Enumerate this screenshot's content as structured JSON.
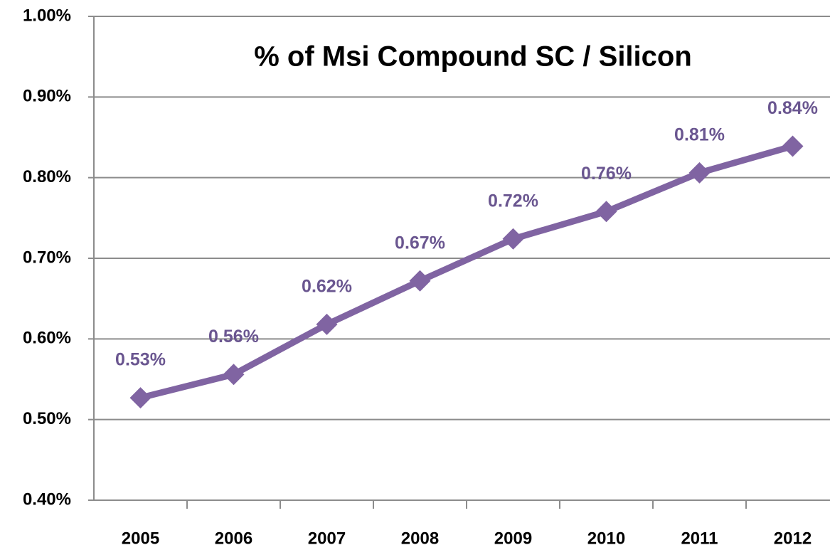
{
  "chart_data": {
    "type": "line",
    "title": "% of Msi Compound SC / Silicon",
    "categories": [
      "2005",
      "2006",
      "2007",
      "2008",
      "2009",
      "2010",
      "2011",
      "2012"
    ],
    "series": [
      {
        "name": "% of Msi Compound SC / Silicon",
        "color": "#8064a2",
        "values": [
          0.527,
          0.556,
          0.618,
          0.672,
          0.724,
          0.758,
          0.806,
          0.839
        ],
        "value_labels": [
          "0.53%",
          "0.56%",
          "0.62%",
          "0.67%",
          "0.72%",
          "0.76%",
          "0.81%",
          "0.84%"
        ]
      }
    ],
    "ylim": [
      0.4,
      1.0
    ],
    "yticks": [
      {
        "value": 0.4,
        "label": "0.40%"
      },
      {
        "value": 0.5,
        "label": "0.50%"
      },
      {
        "value": 0.6,
        "label": "0.60%"
      },
      {
        "value": 0.7,
        "label": "0.70%"
      },
      {
        "value": 0.8,
        "label": "0.80%"
      },
      {
        "value": 0.9,
        "label": "0.90%"
      },
      {
        "value": 1.0,
        "label": "1.00%"
      }
    ],
    "grid": true
  }
}
